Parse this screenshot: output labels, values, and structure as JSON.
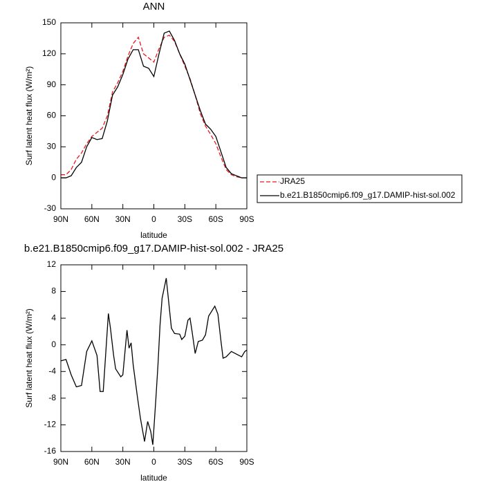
{
  "chart_data": [
    {
      "type": "line",
      "title": "ANN",
      "xlabel": "latitude",
      "ylabel": "Surf latent heat flux (W/m²)",
      "xlim": [
        90,
        -90
      ],
      "ylim": [
        -30,
        150
      ],
      "xticks": [
        {
          "value": 90,
          "label": "90N"
        },
        {
          "value": 60,
          "label": "60N"
        },
        {
          "value": 30,
          "label": "30N"
        },
        {
          "value": 0,
          "label": "0"
        },
        {
          "value": -30,
          "label": "30S"
        },
        {
          "value": -60,
          "label": "60S"
        },
        {
          "value": -90,
          "label": "90S"
        }
      ],
      "yticks": [
        -30,
        0,
        30,
        60,
        90,
        120,
        150
      ],
      "legend": "right",
      "x": [
        90,
        85,
        80,
        75,
        70,
        65,
        60,
        55,
        50,
        45,
        40,
        35,
        30,
        25,
        20,
        15,
        10,
        5,
        0,
        -5,
        -10,
        -15,
        -20,
        -25,
        -30,
        -35,
        -40,
        -45,
        -50,
        -55,
        -60,
        -65,
        -70,
        -75,
        -80,
        -85,
        -90
      ],
      "series": [
        {
          "name": "JRA25",
          "color": "#e8191f",
          "style": "dashed",
          "values": [
            3,
            3,
            8,
            18,
            24,
            33,
            40,
            44,
            48,
            60,
            83,
            92,
            103,
            118,
            130,
            136,
            120,
            116,
            112,
            125,
            136,
            138,
            132,
            120,
            108,
            96,
            80,
            62,
            50,
            42,
            33,
            20,
            8,
            3,
            1,
            0,
            0
          ]
        },
        {
          "name": "b.e21.B1850cmip6.f09_g17.DAMIP-hist-sol.002",
          "color": "#000000",
          "style": "solid",
          "values": [
            0,
            0,
            2,
            10,
            15,
            30,
            39,
            37,
            38,
            55,
            80,
            88,
            100,
            115,
            124,
            124,
            108,
            106,
            98,
            120,
            140,
            142,
            133,
            120,
            110,
            95,
            80,
            65,
            52,
            47,
            40,
            25,
            10,
            4,
            2,
            0,
            0
          ]
        }
      ]
    },
    {
      "type": "line",
      "title": "b.e21.B1850cmip6.f09_g17.DAMIP-hist-sol.002 - JRA25",
      "xlabel": "latitude",
      "ylabel": "Surf latent heat flux (W/m²)",
      "xlim": [
        90,
        -90
      ],
      "ylim": [
        -16,
        12
      ],
      "xticks": [
        {
          "value": 90,
          "label": "90N"
        },
        {
          "value": 60,
          "label": "60N"
        },
        {
          "value": 30,
          "label": "30N"
        },
        {
          "value": 0,
          "label": "0"
        },
        {
          "value": -30,
          "label": "30S"
        },
        {
          "value": -60,
          "label": "60S"
        },
        {
          "value": -90,
          "label": "90S"
        }
      ],
      "yticks": [
        -16,
        -12,
        -8,
        -4,
        0,
        4,
        8,
        12
      ],
      "x": [
        90,
        85,
        80,
        75,
        70,
        65,
        60,
        55,
        52,
        49,
        44,
        42,
        39,
        37,
        32,
        30,
        26,
        24,
        22,
        20,
        16,
        13,
        9,
        6,
        3,
        1,
        -2,
        -4,
        -6,
        -8,
        -12,
        -14,
        -17,
        -20,
        -25,
        -27,
        -30,
        -33,
        -35,
        -37,
        -40,
        -43,
        -47,
        -50,
        -53,
        -59,
        -62,
        -65,
        -67,
        -70,
        -75,
        -80,
        -85,
        -88,
        -90
      ],
      "series": [
        {
          "color": "#000000",
          "style": "solid",
          "values": [
            -2.4,
            -2.2,
            -4.5,
            -6.3,
            -6.1,
            -1,
            0.6,
            -1.6,
            -7,
            -7,
            4.7,
            2.5,
            -1.5,
            -3.6,
            -4.8,
            -4.5,
            2.2,
            -0.5,
            0.3,
            -3,
            -7.7,
            -11,
            -14.5,
            -11.5,
            -13,
            -15,
            -8,
            -3,
            3,
            7,
            10,
            7,
            2.5,
            1.7,
            1.6,
            0.8,
            1.3,
            3.7,
            4,
            2,
            -1.3,
            0.5,
            0.7,
            1.5,
            4.3,
            5.8,
            4.6,
            0.5,
            -2,
            -1.8,
            -1,
            -1.4,
            -1.8,
            -1,
            -0.8
          ]
        }
      ]
    }
  ]
}
